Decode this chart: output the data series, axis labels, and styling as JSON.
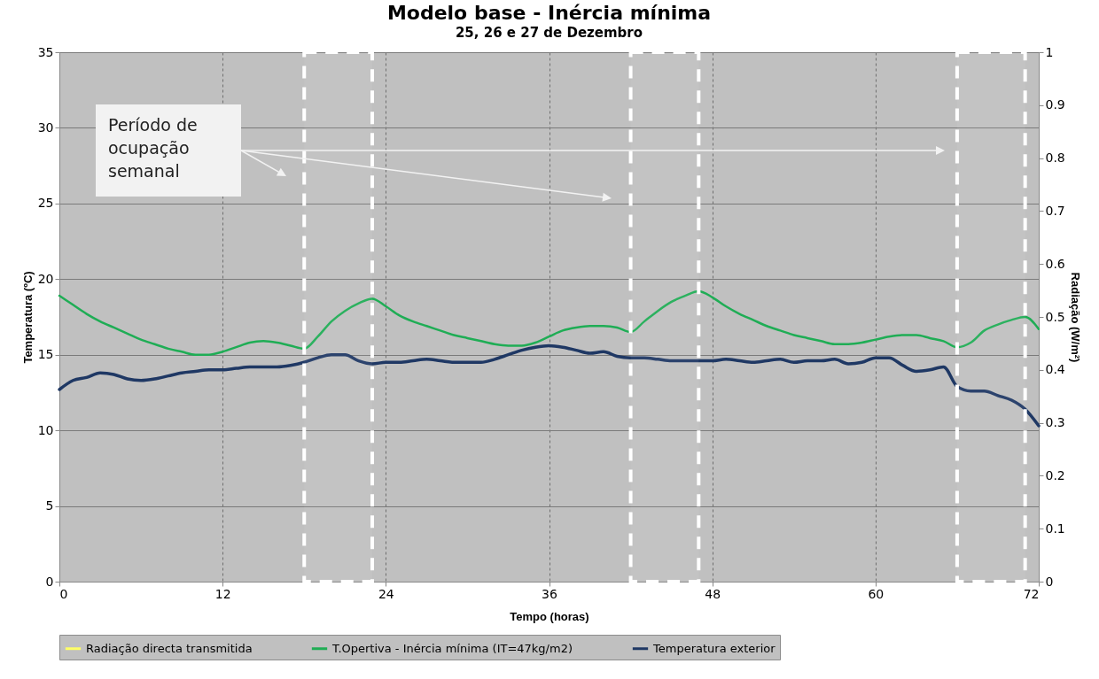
{
  "chart_data": {
    "type": "line",
    "title": "Modelo base - Inércia mínima",
    "subtitle": "25, 26 e 27 de Dezembro",
    "xlabel": "Tempo (horas)",
    "ylabel": "Temperatura (ºC)",
    "y2label": "Radiação (W/m²)",
    "xlim": [
      0,
      72
    ],
    "xticks": [
      0,
      12,
      24,
      36,
      48,
      60,
      72
    ],
    "ylim": [
      0,
      35
    ],
    "yticks": [
      0,
      5,
      10,
      15,
      20,
      25,
      30,
      35
    ],
    "y2lim": [
      0,
      1
    ],
    "y2ticks": [
      0,
      0.1,
      0.2,
      0.3,
      0.4,
      0.5,
      0.6,
      0.7,
      0.8,
      0.9,
      1
    ],
    "grid": true,
    "legend": "bottom",
    "annotations": [
      "Período de ocupação semanal"
    ],
    "bands": [
      {
        "axis": "x",
        "from": 18,
        "to": 23,
        "color": "#ffffff"
      },
      {
        "axis": "x",
        "from": 42,
        "to": 47,
        "color": "#ffffff"
      },
      {
        "axis": "x",
        "from": 66,
        "to": 71,
        "color": "#ffffff"
      }
    ],
    "x": [
      0,
      1,
      2,
      3,
      4,
      5,
      6,
      7,
      8,
      9,
      10,
      11,
      12,
      13,
      14,
      15,
      16,
      17,
      18,
      19,
      20,
      21,
      22,
      23,
      24,
      25,
      26,
      27,
      28,
      29,
      30,
      31,
      32,
      33,
      34,
      35,
      36,
      37,
      38,
      39,
      40,
      41,
      42,
      43,
      44,
      45,
      46,
      47,
      48,
      49,
      50,
      51,
      52,
      53,
      54,
      55,
      56,
      57,
      58,
      59,
      60,
      61,
      62,
      63,
      64,
      65,
      66,
      67,
      68,
      69,
      70,
      71,
      72
    ],
    "series": [
      {
        "name": "Radiação directa transmitida",
        "type": "area",
        "axis": "y2",
        "color": "#ffff66",
        "values": [
          null,
          null,
          null,
          null,
          null,
          null,
          null,
          null,
          null,
          null,
          null,
          null,
          null,
          null,
          null,
          null,
          null,
          null,
          null,
          null,
          null,
          null,
          null,
          null,
          null,
          null,
          null,
          null,
          null,
          null,
          null,
          null,
          null,
          null,
          null,
          null,
          null,
          null,
          null,
          null,
          null,
          null,
          null,
          null,
          null,
          null,
          null,
          null,
          null,
          null,
          null,
          null,
          null,
          null,
          null,
          null,
          null,
          null,
          null,
          null,
          null,
          null,
          null,
          null,
          null,
          null,
          null,
          null,
          null,
          null,
          null,
          null,
          null
        ]
      },
      {
        "name": "T.Opertiva - Inércia mínima (IT=47kg/m2)",
        "color": "#1fad55",
        "values": [
          18.9,
          18.3,
          17.7,
          17.2,
          16.8,
          16.4,
          16.0,
          15.7,
          15.4,
          15.2,
          15.0,
          15.0,
          15.2,
          15.5,
          15.8,
          15.9,
          15.8,
          15.6,
          15.4,
          16.2,
          17.2,
          17.9,
          18.4,
          18.7,
          18.2,
          17.6,
          17.2,
          16.9,
          16.6,
          16.3,
          16.1,
          15.9,
          15.7,
          15.6,
          15.6,
          15.8,
          16.2,
          16.6,
          16.8,
          16.9,
          16.9,
          16.8,
          16.5,
          17.2,
          17.9,
          18.5,
          18.9,
          19.2,
          18.8,
          18.2,
          17.7,
          17.3,
          16.9,
          16.6,
          16.3,
          16.1,
          15.9,
          15.7,
          15.7,
          15.8,
          16.0,
          16.2,
          16.3,
          16.3,
          16.1,
          15.9,
          15.5,
          15.8,
          16.6,
          17.0,
          17.3,
          17.5,
          16.7
        ]
      },
      {
        "name": "Temperatura exterior",
        "color": "#1f3864",
        "values": [
          12.7,
          13.3,
          13.5,
          13.8,
          13.7,
          13.4,
          13.3,
          13.4,
          13.6,
          13.8,
          13.9,
          14.0,
          14.0,
          14.1,
          14.2,
          14.2,
          14.2,
          14.3,
          14.5,
          14.8,
          15.0,
          15.0,
          14.6,
          14.4,
          14.5,
          14.5,
          14.6,
          14.7,
          14.6,
          14.5,
          14.5,
          14.5,
          14.7,
          15.0,
          15.3,
          15.5,
          15.6,
          15.5,
          15.3,
          15.1,
          15.2,
          14.9,
          14.8,
          14.8,
          14.7,
          14.6,
          14.6,
          14.6,
          14.6,
          14.7,
          14.6,
          14.5,
          14.6,
          14.7,
          14.5,
          14.6,
          14.6,
          14.7,
          14.4,
          14.5,
          14.8,
          14.8,
          14.3,
          13.9,
          14.0,
          14.2,
          12.9,
          12.6,
          12.6,
          12.3,
          12.0,
          11.4,
          10.3
        ]
      }
    ]
  }
}
